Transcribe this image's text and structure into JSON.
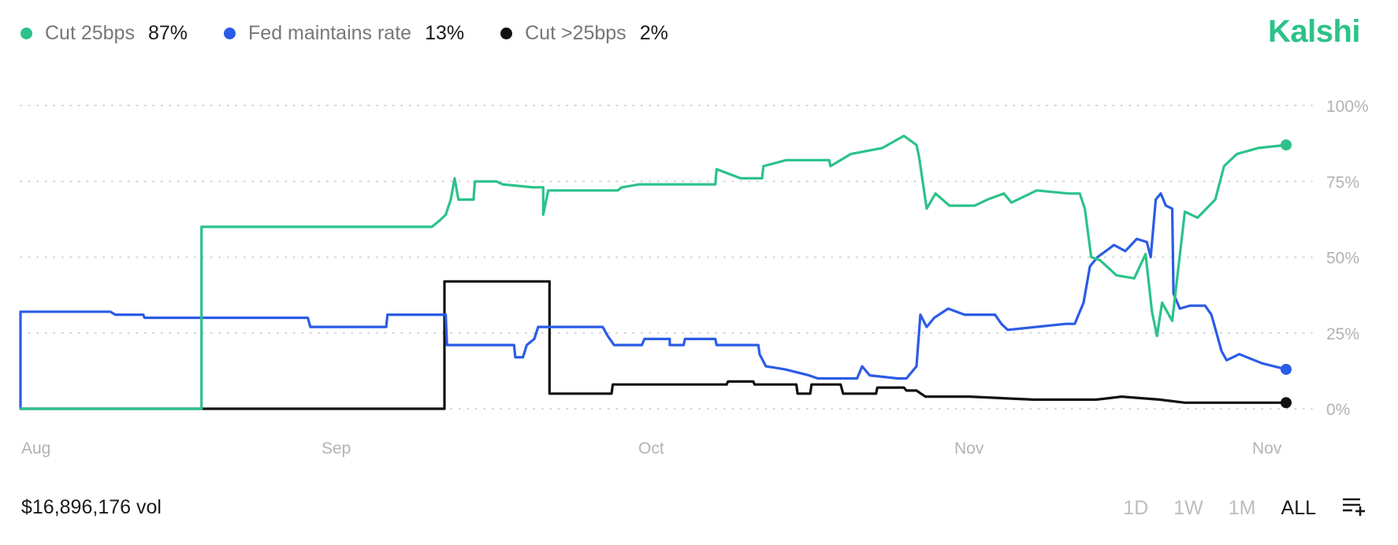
{
  "brand": {
    "name": "Kalshi",
    "color": "#2cc28a"
  },
  "legend": [
    {
      "name": "Cut 25bps",
      "value": "87%",
      "color": "#2cc28a"
    },
    {
      "name": "Fed maintains rate",
      "value": "13%",
      "color": "#2b5ce6"
    },
    {
      "name": "Cut >25bps",
      "value": "2%",
      "color": "#111111"
    }
  ],
  "volume": "$16,896,176 vol",
  "time_ranges": [
    {
      "label": "1D",
      "active": false
    },
    {
      "label": "1W",
      "active": false
    },
    {
      "label": "1M",
      "active": false
    },
    {
      "label": "ALL",
      "active": true
    }
  ],
  "list_icon": "list-add-icon",
  "chart_data": {
    "type": "line",
    "x_ticks": [
      "Aug",
      "Sep",
      "Oct",
      "Nov",
      "Nov"
    ],
    "y_ticks": [
      "0%",
      "25%",
      "50%",
      "75%",
      "100%"
    ],
    "ylim": [
      0,
      100
    ],
    "xlim": [
      0,
      100
    ],
    "grid": true,
    "grid_style": "dotted",
    "y_axis_position": "right",
    "legend_position": "top-left",
    "series": [
      {
        "name": "Cut 25bps",
        "color": "#2cc28a",
        "points": [
          [
            0,
            0
          ],
          [
            14.3,
            0
          ],
          [
            14.3,
            60
          ],
          [
            32.5,
            60
          ],
          [
            33.1,
            62
          ],
          [
            33.6,
            64
          ],
          [
            34.0,
            69
          ],
          [
            34.3,
            76
          ],
          [
            34.6,
            69
          ],
          [
            35.8,
            69
          ],
          [
            35.9,
            75
          ],
          [
            37.6,
            75
          ],
          [
            38.1,
            74
          ],
          [
            40.5,
            73
          ],
          [
            41.3,
            73
          ],
          [
            41.3,
            64
          ],
          [
            41.7,
            72
          ],
          [
            47.2,
            72
          ],
          [
            47.5,
            73
          ],
          [
            48.9,
            74
          ],
          [
            54.9,
            74
          ],
          [
            55.0,
            79
          ],
          [
            56.9,
            76
          ],
          [
            58.6,
            76
          ],
          [
            58.7,
            80
          ],
          [
            60.5,
            82
          ],
          [
            63.9,
            82
          ],
          [
            64.0,
            80
          ],
          [
            65.6,
            84
          ],
          [
            68.1,
            86
          ],
          [
            69.8,
            90
          ],
          [
            70.8,
            87
          ],
          [
            71.0,
            83
          ],
          [
            71.6,
            66
          ],
          [
            72.3,
            71
          ],
          [
            73.4,
            67
          ],
          [
            75.4,
            67
          ],
          [
            76.4,
            69
          ],
          [
            77.7,
            71
          ],
          [
            78.3,
            68
          ],
          [
            80.3,
            72
          ],
          [
            82.8,
            71
          ],
          [
            83.7,
            71
          ],
          [
            84.1,
            66
          ],
          [
            84.6,
            50
          ],
          [
            85.3,
            49
          ],
          [
            86.6,
            44
          ],
          [
            88.0,
            43
          ],
          [
            88.9,
            51
          ],
          [
            89.4,
            32
          ],
          [
            89.8,
            24
          ],
          [
            90.2,
            35
          ],
          [
            91.0,
            29
          ],
          [
            92.0,
            65
          ],
          [
            93.0,
            63
          ],
          [
            94.4,
            69
          ],
          [
            95.1,
            80
          ],
          [
            96.1,
            84
          ],
          [
            97.8,
            86
          ],
          [
            100,
            87
          ]
        ]
      },
      {
        "name": "Fed maintains rate",
        "color": "#2b5ce6",
        "points": [
          [
            0,
            0
          ],
          [
            0,
            32
          ],
          [
            7.1,
            32
          ],
          [
            7.5,
            31
          ],
          [
            9.7,
            31
          ],
          [
            9.8,
            30
          ],
          [
            22.7,
            30
          ],
          [
            22.9,
            27
          ],
          [
            28.9,
            27
          ],
          [
            29.0,
            31
          ],
          [
            33.6,
            31
          ],
          [
            33.7,
            21
          ],
          [
            39.0,
            21
          ],
          [
            39.1,
            17
          ],
          [
            39.7,
            17
          ],
          [
            40.0,
            21
          ],
          [
            40.6,
            23
          ],
          [
            40.9,
            27
          ],
          [
            46.0,
            27
          ],
          [
            46.4,
            24
          ],
          [
            46.9,
            21
          ],
          [
            49.1,
            21
          ],
          [
            49.3,
            23
          ],
          [
            51.3,
            23
          ],
          [
            51.3,
            21
          ],
          [
            52.4,
            21
          ],
          [
            52.5,
            23
          ],
          [
            54.9,
            23
          ],
          [
            55.0,
            21
          ],
          [
            58.3,
            21
          ],
          [
            58.4,
            18
          ],
          [
            58.9,
            14
          ],
          [
            60.4,
            13
          ],
          [
            62.3,
            11
          ],
          [
            63.0,
            10
          ],
          [
            66.1,
            10
          ],
          [
            66.5,
            14
          ],
          [
            67.1,
            11
          ],
          [
            69.3,
            10
          ],
          [
            70.0,
            10
          ],
          [
            70.8,
            14
          ],
          [
            71.1,
            31
          ],
          [
            71.6,
            27
          ],
          [
            72.2,
            30
          ],
          [
            73.3,
            33
          ],
          [
            74.6,
            31
          ],
          [
            77.0,
            31
          ],
          [
            77.5,
            28
          ],
          [
            78.0,
            26
          ],
          [
            82.6,
            28
          ],
          [
            83.3,
            28
          ],
          [
            84.0,
            35
          ],
          [
            84.5,
            47
          ],
          [
            85.1,
            50
          ],
          [
            86.4,
            54
          ],
          [
            87.3,
            52
          ],
          [
            88.2,
            56
          ],
          [
            89.0,
            55
          ],
          [
            89.3,
            50
          ],
          [
            89.7,
            69
          ],
          [
            90.1,
            71
          ],
          [
            90.5,
            67
          ],
          [
            91.0,
            66
          ],
          [
            91.1,
            38
          ],
          [
            91.6,
            33
          ],
          [
            92.4,
            34
          ],
          [
            93.6,
            34
          ],
          [
            94.1,
            31
          ],
          [
            94.5,
            25
          ],
          [
            94.9,
            19
          ],
          [
            95.3,
            16
          ],
          [
            96.3,
            18
          ],
          [
            98.1,
            15
          ],
          [
            100,
            13
          ]
        ]
      },
      {
        "name": "Cut >25bps",
        "color": "#111111",
        "points": [
          [
            0,
            0
          ],
          [
            33.5,
            0
          ],
          [
            33.5,
            42
          ],
          [
            41.8,
            42
          ],
          [
            41.8,
            5
          ],
          [
            46.7,
            5
          ],
          [
            46.8,
            8
          ],
          [
            55.8,
            8
          ],
          [
            55.9,
            9
          ],
          [
            57.9,
            9
          ],
          [
            58.0,
            8
          ],
          [
            61.3,
            8
          ],
          [
            61.4,
            5
          ],
          [
            62.4,
            5
          ],
          [
            62.5,
            8
          ],
          [
            64.8,
            8
          ],
          [
            65.0,
            5
          ],
          [
            67.6,
            5
          ],
          [
            67.7,
            7
          ],
          [
            69.8,
            7
          ],
          [
            70.0,
            6
          ],
          [
            70.8,
            6
          ],
          [
            71.5,
            4
          ],
          [
            75.0,
            4
          ],
          [
            80.0,
            3
          ],
          [
            85.0,
            3
          ],
          [
            87.0,
            4
          ],
          [
            90.0,
            3
          ],
          [
            92.0,
            2
          ],
          [
            95.0,
            2
          ],
          [
            100,
            2
          ]
        ]
      }
    ]
  }
}
